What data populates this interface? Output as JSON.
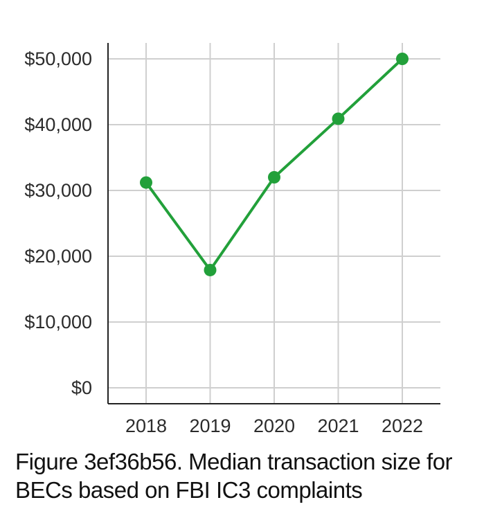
{
  "chart_data": {
    "type": "line",
    "x": [
      "2018",
      "2019",
      "2020",
      "2021",
      "2022"
    ],
    "series": [
      {
        "values": [
          31200,
          17900,
          32000,
          40900,
          50000
        ],
        "color": "#22a03a"
      }
    ],
    "y_ticks": [
      0,
      10000,
      20000,
      30000,
      40000,
      50000
    ],
    "y_tick_labels": [
      "$0",
      "$10,000",
      "$20,000",
      "$30,000",
      "$40,000",
      "$50,000"
    ],
    "ylim": [
      0,
      50000
    ],
    "grid": true,
    "xlabel": "",
    "ylabel": ""
  },
  "caption": "Figure 3ef36b56. Median transaction size for BECs based on FBI IC3 complaints"
}
